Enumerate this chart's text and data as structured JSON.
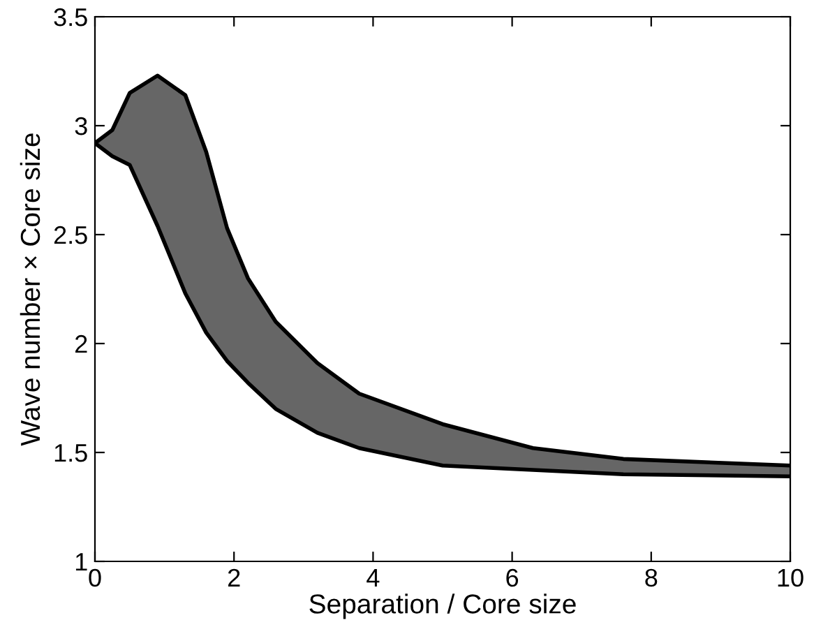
{
  "chart_data": {
    "type": "area",
    "xlabel": "Separation / Core size",
    "ylabel": "Wave number × Core size",
    "x": [
      0,
      0.25,
      0.5,
      0.9,
      1.3,
      1.6,
      1.9,
      2.2,
      2.6,
      3.2,
      3.8,
      5,
      6.3,
      7.6,
      10
    ],
    "series": [
      {
        "color": "#666666",
        "values": [
          2.92,
          2.98,
          3.15,
          3.23,
          3.14,
          2.88,
          2.53,
          2.3,
          2.1,
          1.91,
          1.77,
          1.63,
          1.52,
          1.47,
          1.44
        ]
      },
      {
        "color": "#ffffff",
        "values": [
          2.92,
          2.86,
          2.82,
          2.54,
          2.23,
          2.05,
          1.92,
          1.82,
          1.7,
          1.59,
          1.52,
          1.44,
          1.42,
          1.4,
          1.39
        ]
      }
    ],
    "xlim": [
      0,
      10
    ],
    "xticks": [
      0,
      2,
      4,
      6,
      8,
      10
    ],
    "ylim": [
      1,
      3.5
    ],
    "yticks": [
      1,
      1.5,
      2,
      2.5,
      3,
      3.5
    ]
  }
}
